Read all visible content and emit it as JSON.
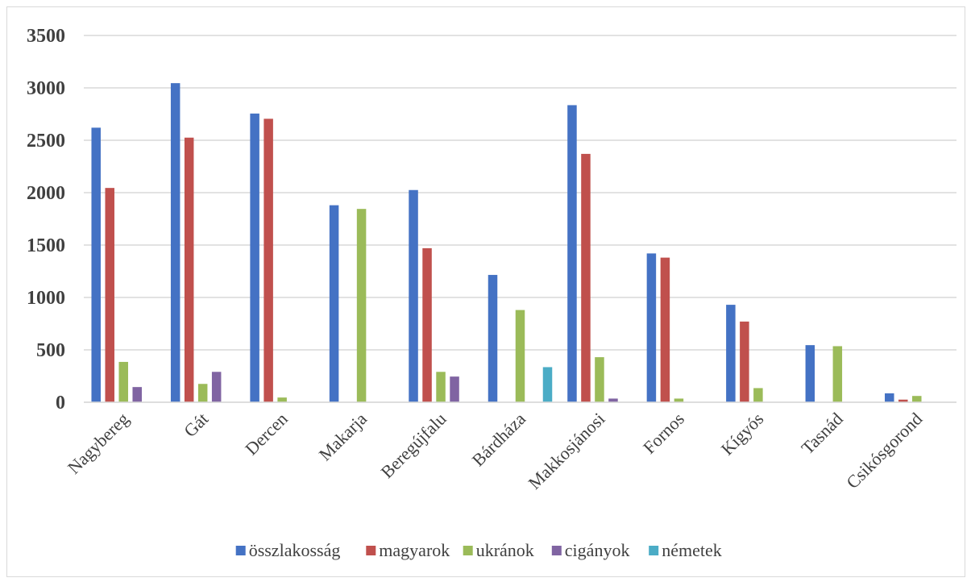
{
  "chart_data": {
    "type": "bar",
    "title": "",
    "xlabel": "",
    "ylabel": "",
    "ylim": [
      0,
      3500
    ],
    "yticks": [
      0,
      500,
      1000,
      1500,
      2000,
      2500,
      3000,
      3500
    ],
    "grid": true,
    "legend_position": "bottom",
    "categories": [
      "Nagybereg",
      "Gát",
      "Dercen",
      "Makarja",
      "Beregújfalu",
      "Bárdháza",
      "Makkosjánosi",
      "Fornos",
      "Kígyós",
      "Tasnád",
      "Csikósgorond"
    ],
    "series": [
      {
        "name": "összlakosság",
        "color": "#4472C4",
        "values": [
          2620,
          3045,
          2755,
          1880,
          2025,
          1215,
          2835,
          1420,
          930,
          545,
          85
        ]
      },
      {
        "name": "magyarok",
        "color": "#C0504D",
        "values": [
          2045,
          2525,
          2705,
          null,
          1470,
          null,
          2370,
          1380,
          770,
          null,
          25
        ]
      },
      {
        "name": "ukránok",
        "color": "#9BBB59",
        "values": [
          385,
          175,
          45,
          1845,
          290,
          880,
          430,
          35,
          135,
          535,
          60
        ]
      },
      {
        "name": "cigányok",
        "color": "#8064A2",
        "values": [
          145,
          290,
          null,
          null,
          245,
          null,
          35,
          null,
          null,
          null,
          null
        ]
      },
      {
        "name": "németek",
        "color": "#4BACC6",
        "values": [
          null,
          null,
          null,
          null,
          null,
          335,
          null,
          null,
          null,
          null,
          null
        ]
      }
    ]
  }
}
